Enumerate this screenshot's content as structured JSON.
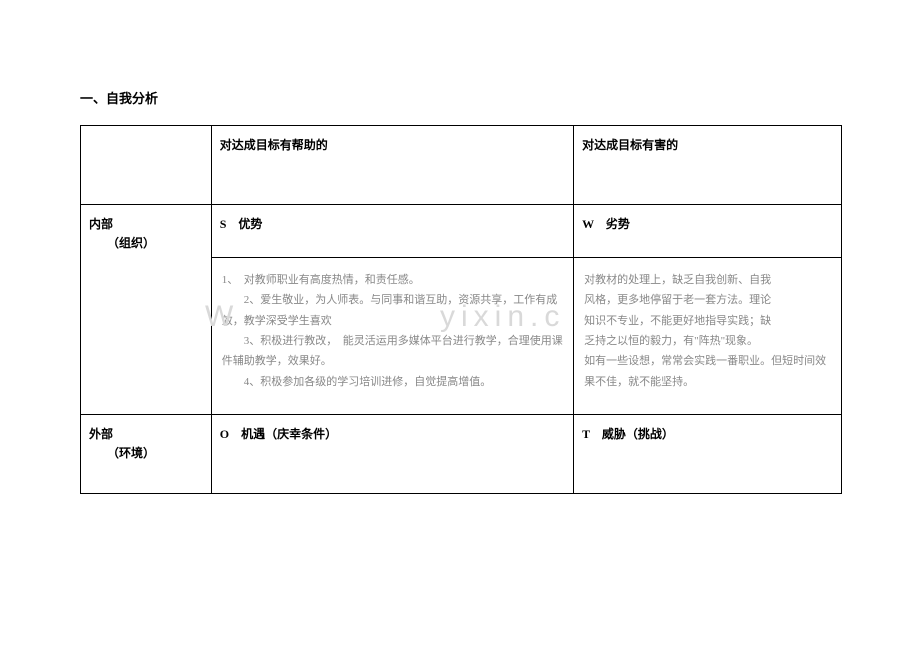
{
  "title": "一、自我分析",
  "header": {
    "leftBlank": "",
    "helpful": "对达成目标有帮助的",
    "harmful": "对达成目标有害的"
  },
  "rows": {
    "internal": {
      "label1": "内部",
      "label2": "（组织）",
      "sLabel": "S　优势",
      "wLabel": "W　劣势",
      "sContent": "1、　对教师职业有高度热情，和责任感。\n　　2、爱生敬业，为人师表。与同事和谐互助，资源共享，工作有成效，教学深受学生喜欢\n　　3、积极进行教改，　能灵活运用多媒体平台进行教学，合理使用课件辅助教学，效果好。\n　　4、积极参加各级的学习培训进修，自觉提高增值。",
      "wContent": "对教材的处理上，缺乏自我创新、自我\n风格，更多地停留于老一套方法。理论\n知识不专业，不能更好地指导实践；缺\n乏持之以恒的毅力，有\"阵热\"现象。\n如有一些设想，常常会实践一番职业。但短时间效果不佳，就不能坚持。"
    },
    "external": {
      "label1": "外部",
      "label2": "（环境）",
      "oLabel": "O　机遇（庆幸条件）",
      "tLabel": "T　威胁（挑战）"
    }
  },
  "watermark": "W              yixin.c",
  "colors": {
    "text": "#000000",
    "grayText": "#888888",
    "watermark": "#d9d9d9",
    "background": "#ffffff",
    "border": "#000000"
  }
}
